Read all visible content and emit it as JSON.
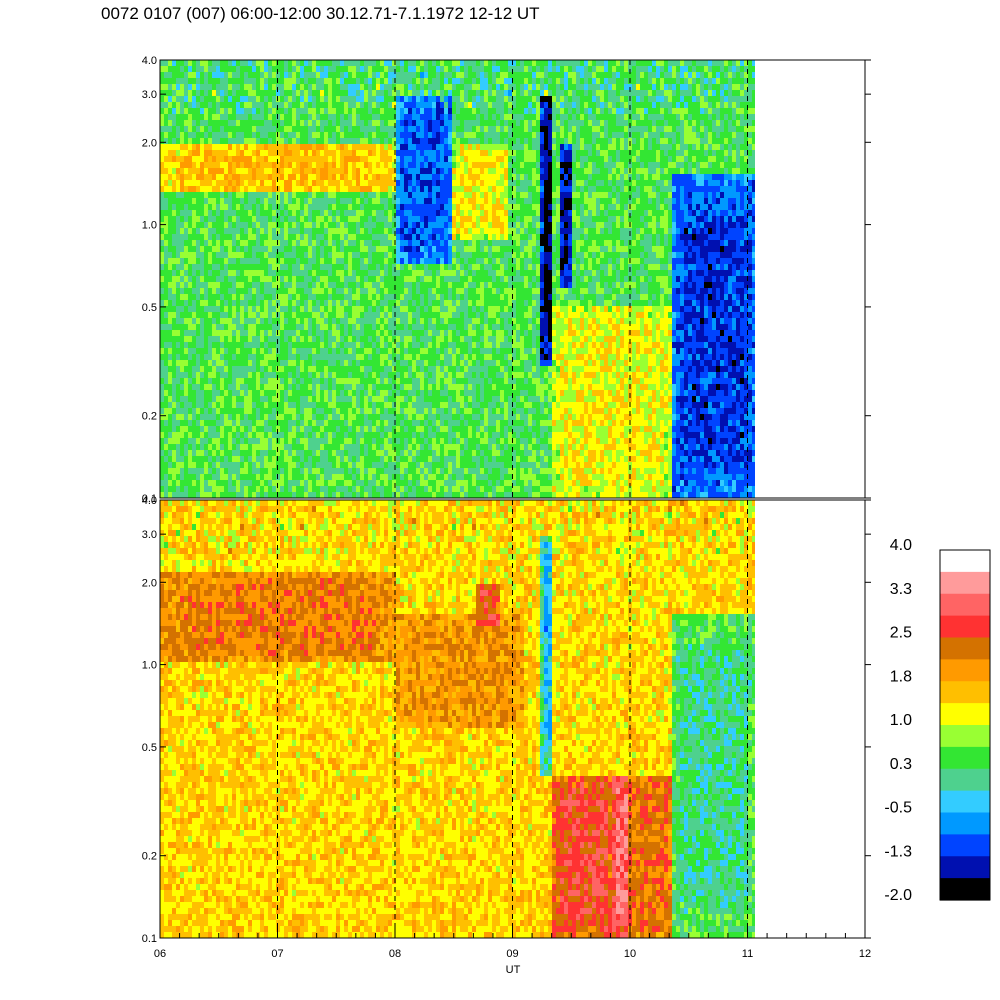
{
  "title": "0072 0107 (007) 06:00-12:00 30.12.71-7.1.1972  12-12 UT",
  "chart_data": {
    "type": "heatmap",
    "xlabel": "UT",
    "x_tick_labels": [
      "06",
      "07",
      "08",
      "09",
      "10",
      "11",
      "12"
    ],
    "x_range": [
      6,
      12
    ],
    "data_end_hour": 11.08,
    "vertical_dashed_lines_at": [
      7,
      8,
      9,
      10,
      11
    ],
    "y_scale": "log",
    "y_range": [
      0.1,
      4.0
    ],
    "y_ticks": [
      0.1,
      0.2,
      0.5,
      1.0,
      2.0,
      3.0,
      4.0
    ],
    "y_tick_labels": [
      "0.1",
      "0.2",
      "0.5",
      "1.0",
      "2.0",
      "3.0",
      "4.0"
    ],
    "panels": [
      {
        "name": "upper",
        "features": [
          {
            "x": [
              6.0,
              8.0
            ],
            "y": [
              1.3,
              2.0
            ],
            "value": 1.6
          },
          {
            "x": [
              8.0,
              8.5
            ],
            "y": [
              0.7,
              3.0
            ],
            "value": -1.0
          },
          {
            "x": [
              8.5,
              8.95
            ],
            "y": [
              0.9,
              2.0
            ],
            "value": 1.3
          },
          {
            "x": [
              9.25,
              9.35
            ],
            "y": [
              0.3,
              3.0
            ],
            "value": -1.8
          },
          {
            "x": [
              9.4,
              9.5
            ],
            "y": [
              0.6,
              2.0
            ],
            "value": -1.5
          },
          {
            "x": [
              9.35,
              10.35
            ],
            "y": [
              0.1,
              0.5
            ],
            "value": 1.2
          },
          {
            "x": [
              10.35,
              11.08
            ],
            "y": [
              0.1,
              1.5
            ],
            "value": -1.2
          }
        ]
      },
      {
        "name": "lower",
        "features": [
          {
            "x": [
              6.0,
              8.0
            ],
            "y": [
              1.0,
              2.2
            ],
            "value": 2.2
          },
          {
            "x": [
              8.0,
              9.1
            ],
            "y": [
              0.6,
              1.5
            ],
            "value": 2.0
          },
          {
            "x": [
              8.7,
              8.9
            ],
            "y": [
              1.3,
              2.0
            ],
            "value": 2.6
          },
          {
            "x": [
              9.25,
              9.35
            ],
            "y": [
              0.4,
              3.0
            ],
            "value": -0.5
          },
          {
            "x": [
              9.35,
              9.85
            ],
            "y": [
              0.1,
              0.4
            ],
            "value": 2.7
          },
          {
            "x": [
              9.85,
              10.0
            ],
            "y": [
              0.1,
              0.4
            ],
            "value": 3.1
          },
          {
            "x": [
              10.0,
              10.35
            ],
            "y": [
              0.1,
              0.4
            ],
            "value": 2.3
          },
          {
            "x": [
              10.35,
              11.08
            ],
            "y": [
              0.1,
              1.5
            ],
            "value": 0.1
          }
        ]
      }
    ],
    "colorbar": {
      "tick_labels": [
        "4.0",
        "3.3",
        "2.5",
        "1.8",
        "1.0",
        "0.3",
        "-0.5",
        "-1.3",
        "-2.0"
      ],
      "range": [
        -2.0,
        4.0
      ],
      "colors_top_to_bottom": [
        "#ffffff",
        "#ff9b9b",
        "#ff6464",
        "#ff3232",
        "#d47200",
        "#ff9a00",
        "#ffbf00",
        "#ffff00",
        "#99ff33",
        "#33e633",
        "#4ed18e",
        "#33ccff",
        "#0099ff",
        "#0044ff",
        "#0010b0",
        "#000000"
      ]
    }
  }
}
